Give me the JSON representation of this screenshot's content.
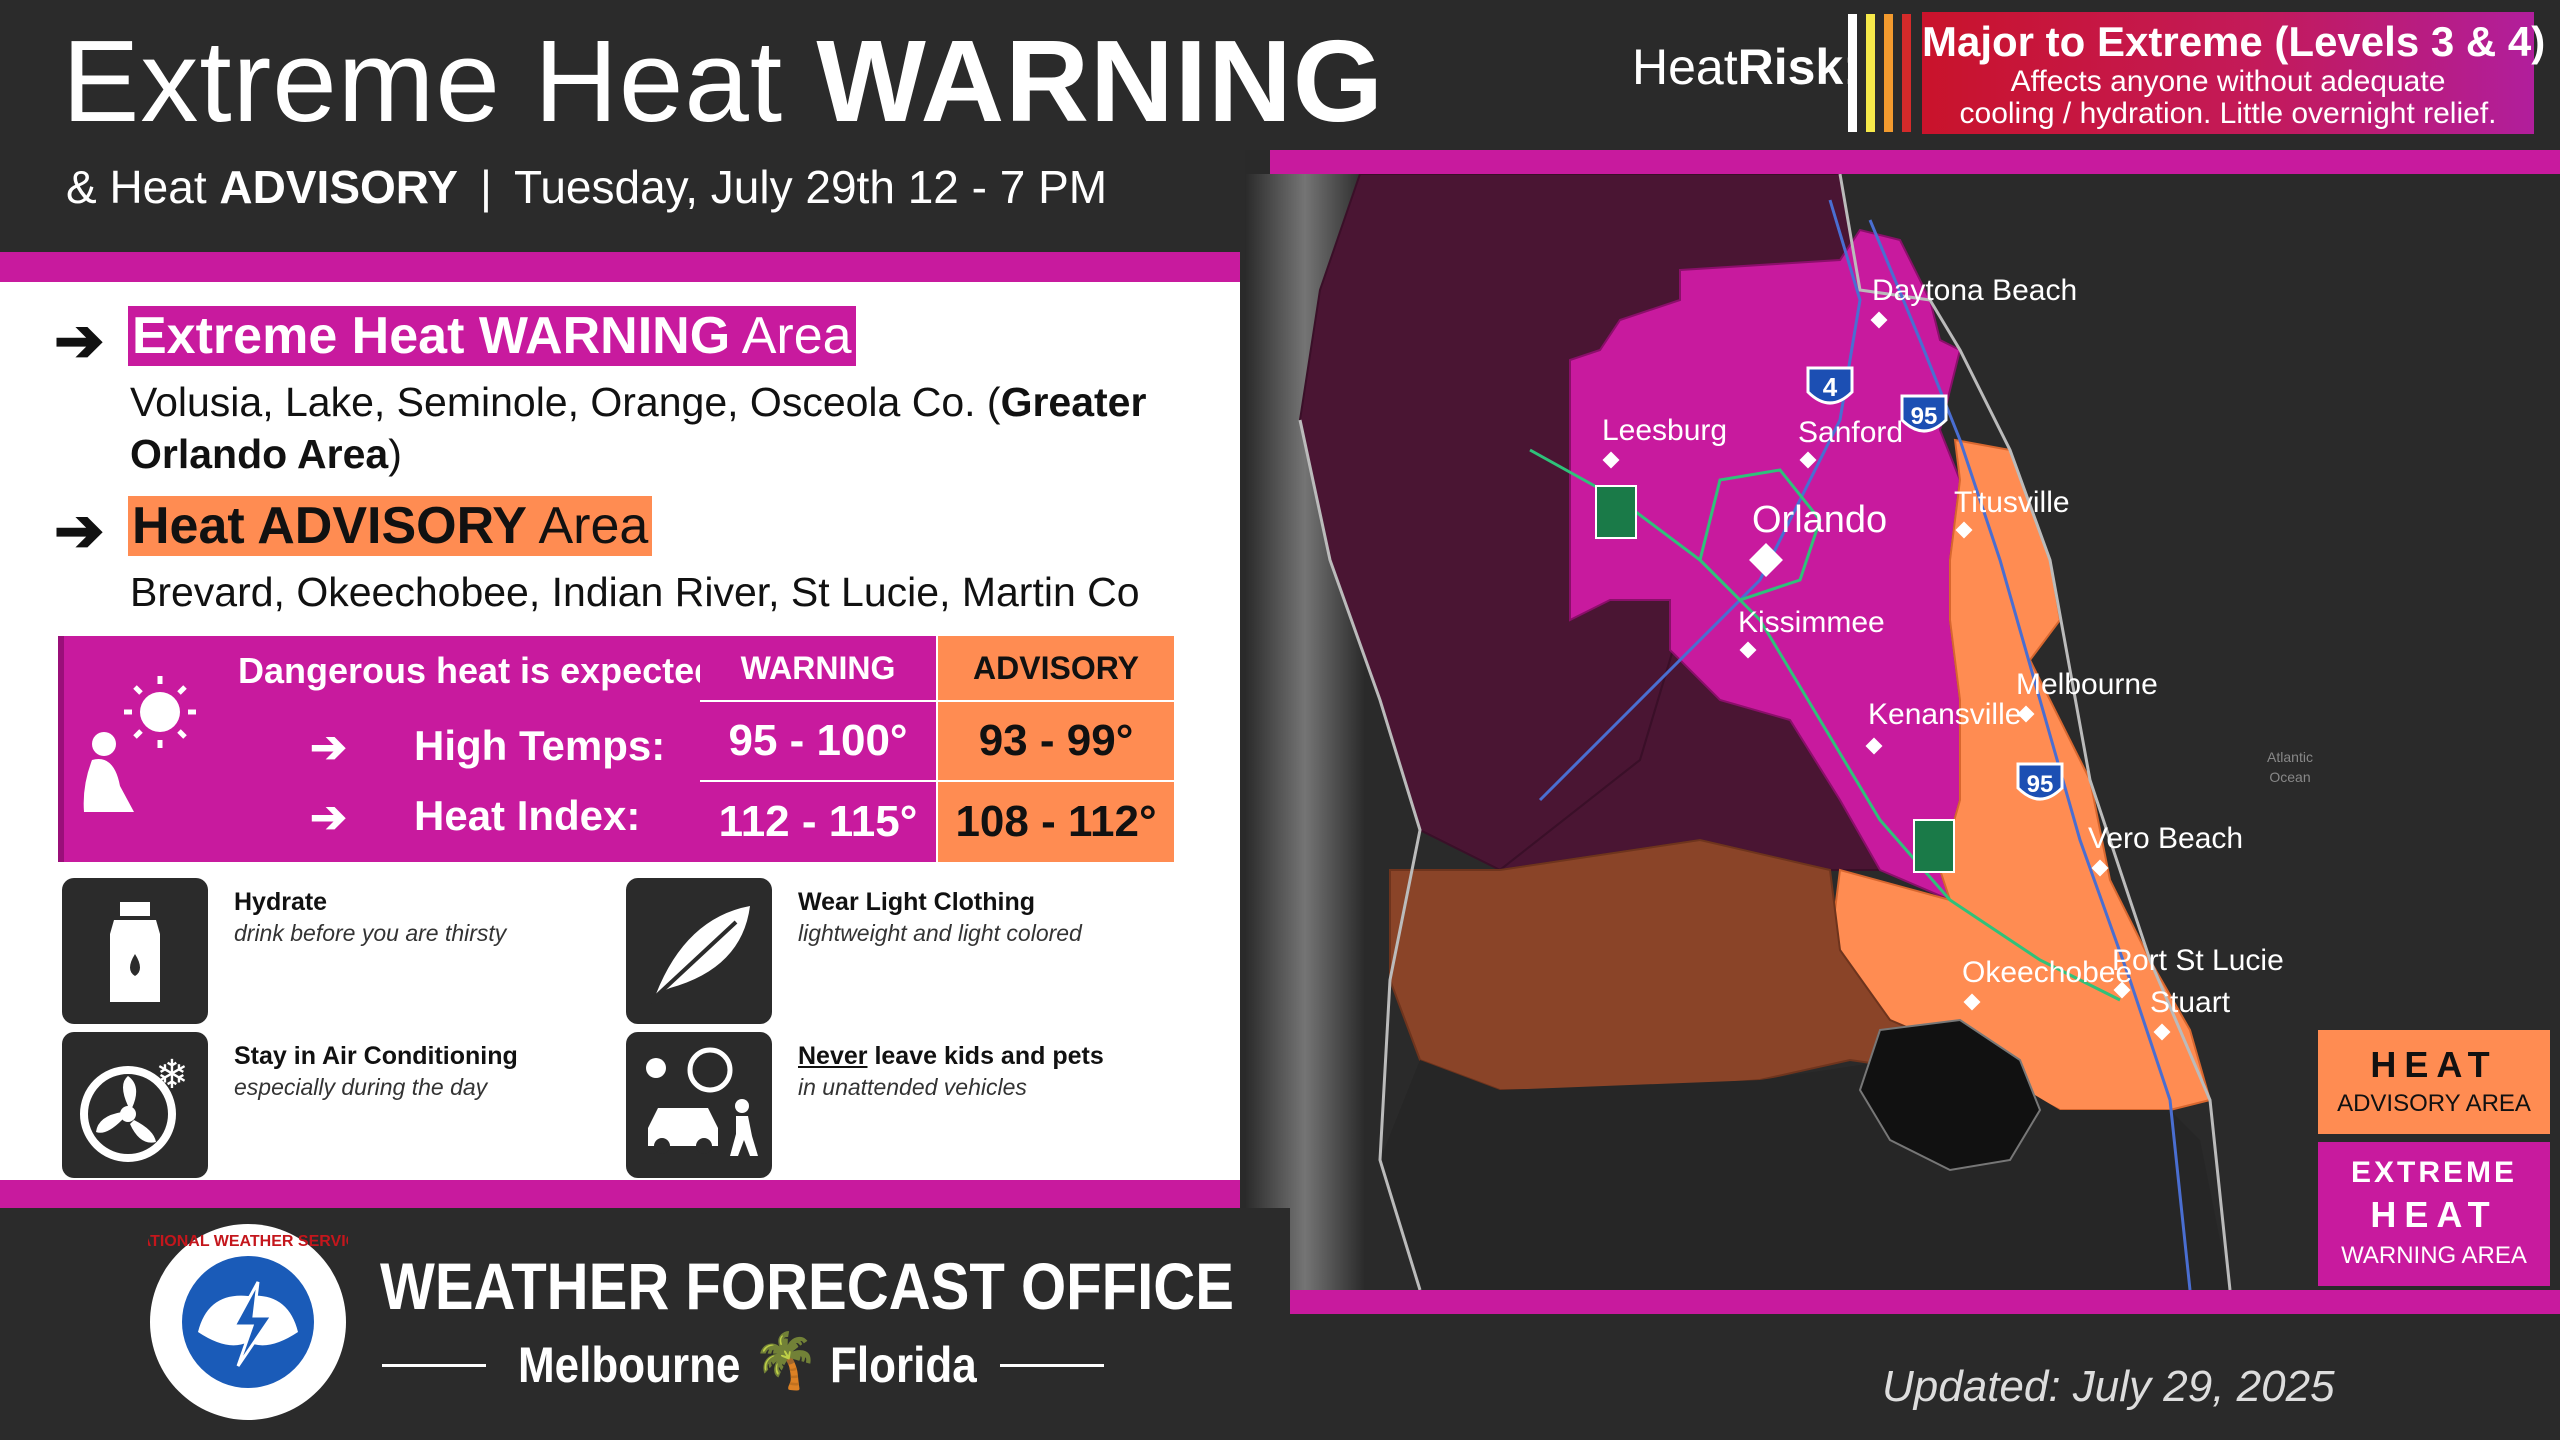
{
  "title": {
    "prefix": "Extreme Heat ",
    "bold": "WARNING"
  },
  "subtitle": {
    "prefix": "& Heat ",
    "bold": "ADVISORY",
    "separator": "|",
    "date": "Tuesday, July 29th 12 - 7 PM"
  },
  "heatrisk": {
    "label_light": "Heat",
    "label_bold": "Risk",
    "label_colon": ":",
    "level": "Major to Extreme (Levels 3 & 4)",
    "desc_line1": "Affects anyone without adequate",
    "desc_line2": "cooling / hydration. Little overnight relief.",
    "bar_colors": [
      "#ffffff",
      "#f6e94a",
      "#f29a2e",
      "#d42a2a"
    ]
  },
  "warning_area": {
    "arrow": "➔",
    "title_bold": "Extreme Heat WARNING",
    "title_rest": " Area",
    "desc_line1_pre": "Volusia, Lake, Seminole, Orange, Osceola Co. (",
    "desc_line1_bold": "Greater",
    "desc_line2_bold": "Orlando Area",
    "desc_line2_post": ")",
    "color": "#c81a9e"
  },
  "advisory_area": {
    "arrow": "➔",
    "title_bold": "Heat ADVISORY",
    "title_rest": " Area",
    "desc": "Brevard, Okeechobee, Indian River, St Lucie, Martin Co",
    "color": "#ff8c52"
  },
  "table": {
    "header_text": "Dangerous heat is expected.",
    "col_warning": "WARNING",
    "col_advisory": "ADVISORY",
    "rows": [
      {
        "arrow": "➔",
        "label": "High Temps:",
        "warning": "95 - 100°",
        "advisory": "93 - 99°"
      },
      {
        "arrow": "➔",
        "label": "Heat Index:",
        "warning": "112 - 115°",
        "advisory": "108 - 112°"
      }
    ]
  },
  "tips": [
    {
      "title": "Hydrate",
      "subtitle": "drink before you are thirsty",
      "icon": "water-bottle-icon"
    },
    {
      "title": "Wear Light Clothing",
      "subtitle": "lightweight and light colored",
      "icon": "feather-icon"
    },
    {
      "title": "Stay in Air Conditioning",
      "subtitle": "especially during the day",
      "icon": "ac-fan-icon"
    },
    {
      "title_underlined": "Never",
      "title_rest": " leave kids and pets",
      "subtitle": "in unattended vehicles",
      "icon": "car-kids-pets-icon"
    }
  ],
  "footer": {
    "logo_text": "NATIONAL WEATHER SERVICE",
    "office": "WEATHER FORECAST OFFICE",
    "city": "Melbourne",
    "state": "Florida",
    "updated": "Updated: July 29, 2025"
  },
  "map": {
    "cities": [
      "Daytona Beach",
      "Leesburg",
      "Sanford",
      "Orlando",
      "Titusville",
      "Kissimmee",
      "Melbourne",
      "Kenansville",
      "Vero Beach",
      "Okeechobee",
      "Port St Lucie",
      "Stuart"
    ],
    "interstates": [
      "4",
      "95",
      "95"
    ],
    "ocean_label_1": "Atlantic",
    "ocean_label_2": "Ocean"
  },
  "legend": {
    "advisory_line1": "HEAT",
    "advisory_line2": "ADVISORY AREA",
    "warning_line1": "EXTREME",
    "warning_line2": "HEAT",
    "warning_line3": "WARNING AREA"
  }
}
